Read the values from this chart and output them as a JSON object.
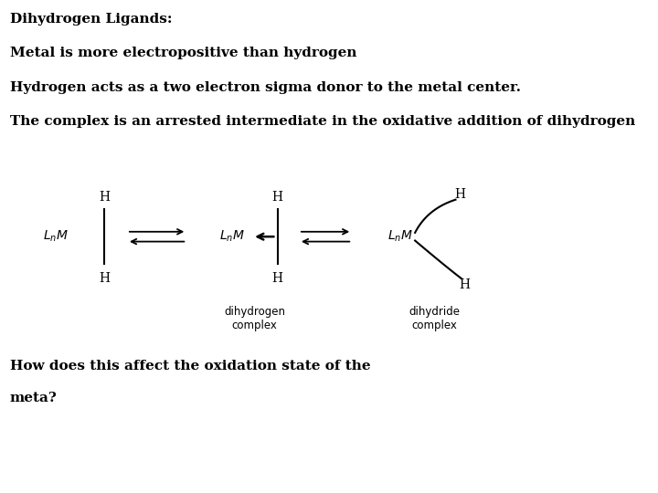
{
  "title1": "Dihydrogen Ligands:",
  "line1": "Metal is more electropositive than hydrogen",
  "line2": "Hydrogen acts as a two electron sigma donor to the metal center.",
  "line3": "The complex is an arrested intermediate in the oxidative addition of dihydrogen",
  "bottom_text1": "How does this affect the oxidation state of the",
  "bottom_text2": "meta?",
  "bg_color": "#ffffff",
  "text_color": "#000000",
  "font_size_body": 11,
  "font_size_diagram": 10,
  "font_size_small": 8.5
}
